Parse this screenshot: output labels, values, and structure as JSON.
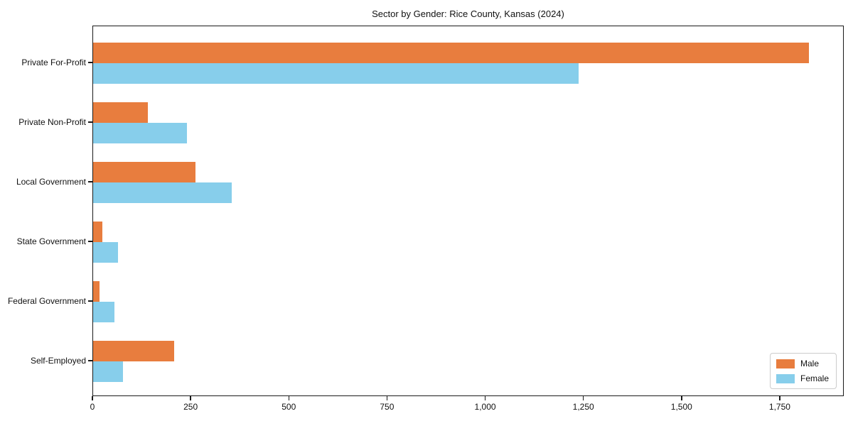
{
  "chart_data": {
    "type": "bar",
    "orientation": "horizontal",
    "title": "Sector by Gender: Rice County, Kansas (2024)",
    "categories": [
      "Private For-Profit",
      "Private Non-Profit",
      "Local Government",
      "State Government",
      "Federal Government",
      "Self-Employed"
    ],
    "series": [
      {
        "name": "Male",
        "color": "#e87d3e",
        "values": [
          1822,
          140,
          261,
          23,
          16,
          206
        ]
      },
      {
        "name": "Female",
        "color": "#87ceeb",
        "values": [
          1237,
          239,
          353,
          63,
          54,
          76
        ]
      }
    ],
    "xlabel": "",
    "ylabel": "",
    "xlim": [
      0,
      1913
    ],
    "xticks": [
      0,
      250,
      500,
      750,
      1000,
      1250,
      1500,
      1750
    ],
    "xtick_labels": [
      "0",
      "250",
      "500",
      "750",
      "1,000",
      "1,250",
      "1,500",
      "1,750"
    ],
    "grid": false,
    "legend_position": "lower right",
    "plot_border_color": "#1a1a1a",
    "background_color": "#ffffff"
  },
  "legend": {
    "items": [
      {
        "label": "Male"
      },
      {
        "label": "Female"
      }
    ]
  }
}
